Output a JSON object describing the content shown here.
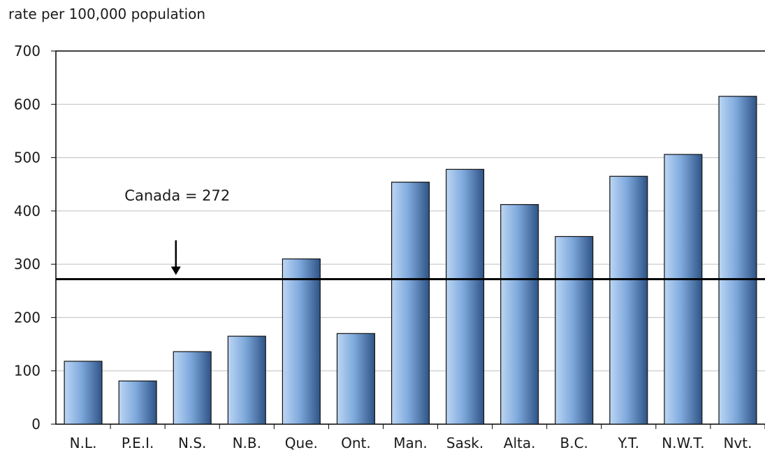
{
  "chart_data": {
    "type": "bar",
    "ylabel": "rate per 100,000 population",
    "categories": [
      "N.L.",
      "P.E.I.",
      "N.S.",
      "N.B.",
      "Que.",
      "Ont.",
      "Man.",
      "Sask.",
      "Alta.",
      "B.C.",
      "Y.T.",
      "N.W.T.",
      "Nvt."
    ],
    "values": [
      118,
      81,
      136,
      165,
      310,
      170,
      454,
      478,
      412,
      352,
      465,
      506,
      615
    ],
    "ylim": [
      0,
      700
    ],
    "yticks": [
      0,
      100,
      200,
      300,
      400,
      500,
      600,
      700
    ],
    "grid": true,
    "reference_line": {
      "value": 272,
      "label": "Canada = 272"
    },
    "colors": {
      "bar_light": "#bcd6f4",
      "bar_mid": "#7fa9dc",
      "bar_dark": "#2f5487",
      "grid": "#bfbfbf",
      "axis": "#000000"
    }
  }
}
